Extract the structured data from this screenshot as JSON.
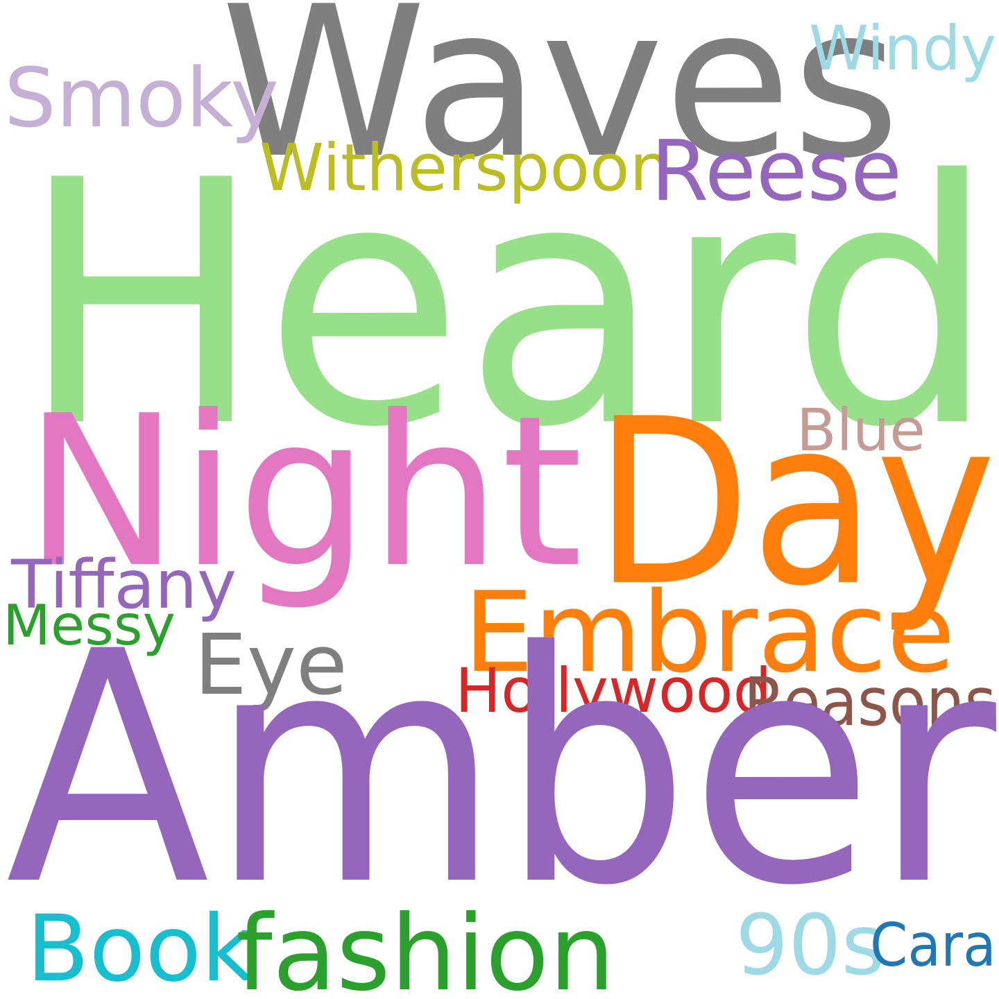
{
  "words": {
    "heard": {
      "text": "Heard",
      "color": "#98df8a"
    },
    "amber": {
      "text": "Amber",
      "color": "#9467bd"
    },
    "waves": {
      "text": "Waves",
      "color": "#7f7f7f"
    },
    "night": {
      "text": "Night",
      "color": "#e377c2"
    },
    "day": {
      "text": "Day",
      "color": "#ff7f0e"
    },
    "embrace": {
      "text": "Embrace",
      "color": "#ff7f0e"
    },
    "eye": {
      "text": "Eye",
      "color": "#7f7f7f"
    },
    "smoky": {
      "text": "Smoky",
      "color": "#c5b0d5"
    },
    "windy": {
      "text": "Windy",
      "color": "#9edae5"
    },
    "witherspoon": {
      "text": "Witherspoon",
      "color": "#bcbd22"
    },
    "reese": {
      "text": "Reese",
      "color": "#9467bd"
    },
    "blue": {
      "text": "Blue",
      "color": "#c49c94"
    },
    "tiffany": {
      "text": "Tiffany",
      "color": "#9467bd"
    },
    "messy": {
      "text": "Messy",
      "color": "#2ca02c"
    },
    "hollywood": {
      "text": "Hollywood",
      "color": "#d62728"
    },
    "reasons": {
      "text": "Reasons",
      "color": "#8c564b"
    },
    "book": {
      "text": "Book",
      "color": "#17becf"
    },
    "fashion": {
      "text": "fashion",
      "color": "#2ca02c"
    },
    "nineties": {
      "text": "90s",
      "color": "#9edae5"
    },
    "cara": {
      "text": "Cara",
      "color": "#1f77b4"
    }
  }
}
